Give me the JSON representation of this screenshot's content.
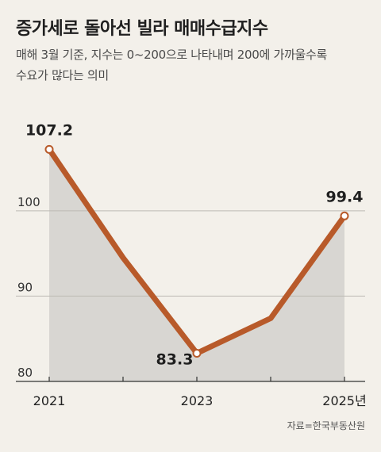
{
  "title": "증가세로 돌아선 빌라 매매수급지수",
  "subtitle_lines": [
    "매해 3월 기준, 지수는 0~200으로 나타내며 200에 가까울수록",
    "수요가 많다는 의미"
  ],
  "source": "자료=한국부동산원",
  "chart_data": {
    "type": "area",
    "x": [
      2021,
      2022,
      2023,
      2024,
      2025
    ],
    "values": [
      107.2,
      94.5,
      83.3,
      87.4,
      99.4
    ],
    "xticks": [
      "2021",
      "",
      "2023",
      "",
      "2025년"
    ],
    "yticks": [
      "80",
      "90",
      "100"
    ],
    "ylim": [
      80,
      113
    ],
    "point_labels": {
      "0": "107.2",
      "2": "83.3",
      "4": "99.4"
    },
    "grid": true,
    "colors": {
      "line": "#b85a2a",
      "fill": "#d8d6d2",
      "grid": "#bdbab4",
      "marker_fill": "#ffffff"
    }
  }
}
